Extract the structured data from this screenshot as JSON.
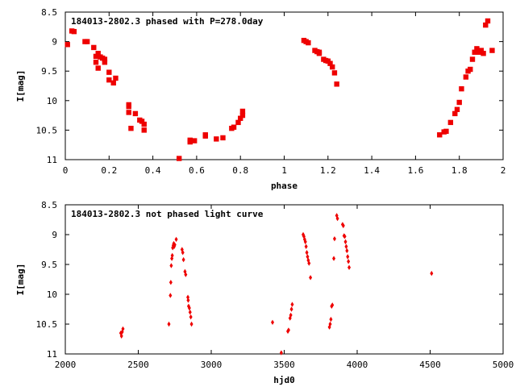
{
  "chart_data": [
    {
      "type": "scatter",
      "title": "184013-2802.3 phased with P=278.0day",
      "xlabel": "phase",
      "ylabel": "I[mag]",
      "xlim": [
        0,
        2
      ],
      "ylim": [
        11,
        8.5
      ],
      "y_inverted": true,
      "grid": false,
      "xticks": [
        0,
        0.2,
        0.4,
        0.6,
        0.8,
        1,
        1.2,
        1.4,
        1.6,
        1.8,
        2
      ],
      "xtick_labels": [
        "0",
        "0.2",
        "0.4",
        "0.6",
        "0.8",
        "1",
        "1.2",
        "1.4",
        "1.6",
        "1.8",
        "2"
      ],
      "yticks": [
        8.5,
        9,
        9.5,
        10,
        10.5,
        11
      ],
      "ytick_labels": [
        "8.5",
        "9",
        "9.5",
        "10",
        "10.5",
        "11"
      ],
      "marker_color": "#ee0000",
      "points": [
        [
          0.01,
          9.05
        ],
        [
          0.03,
          8.82
        ],
        [
          0.04,
          8.83
        ],
        [
          0.09,
          9.0
        ],
        [
          0.1,
          9.0
        ],
        [
          0.13,
          9.1
        ],
        [
          0.14,
          9.25
        ],
        [
          0.14,
          9.35
        ],
        [
          0.15,
          9.2
        ],
        [
          0.15,
          9.45
        ],
        [
          0.16,
          9.26
        ],
        [
          0.17,
          9.28
        ],
        [
          0.18,
          9.3
        ],
        [
          0.18,
          9.35
        ],
        [
          0.2,
          9.52
        ],
        [
          0.2,
          9.65
        ],
        [
          0.22,
          9.7
        ],
        [
          0.23,
          9.62
        ],
        [
          0.29,
          10.07
        ],
        [
          0.29,
          10.1
        ],
        [
          0.29,
          10.2
        ],
        [
          0.3,
          10.47
        ],
        [
          0.32,
          10.22
        ],
        [
          0.34,
          10.33
        ],
        [
          0.35,
          10.35
        ],
        [
          0.36,
          10.4
        ],
        [
          0.36,
          10.5
        ],
        [
          0.52,
          10.98
        ],
        [
          0.57,
          10.67
        ],
        [
          0.57,
          10.7
        ],
        [
          0.59,
          10.68
        ],
        [
          0.64,
          10.58
        ],
        [
          0.64,
          10.6
        ],
        [
          0.69,
          10.65
        ],
        [
          0.72,
          10.63
        ],
        [
          0.76,
          10.47
        ],
        [
          0.77,
          10.45
        ],
        [
          0.79,
          10.37
        ],
        [
          0.8,
          10.3
        ],
        [
          0.81,
          10.25
        ],
        [
          0.81,
          10.18
        ],
        [
          1.09,
          8.98
        ],
        [
          1.1,
          9.0
        ],
        [
          1.11,
          9.02
        ],
        [
          1.14,
          9.15
        ],
        [
          1.15,
          9.17
        ],
        [
          1.16,
          9.18
        ],
        [
          1.16,
          9.2
        ],
        [
          1.18,
          9.3
        ],
        [
          1.19,
          9.32
        ],
        [
          1.2,
          9.33
        ],
        [
          1.21,
          9.37
        ],
        [
          1.22,
          9.43
        ],
        [
          1.23,
          9.53
        ],
        [
          1.24,
          9.72
        ],
        [
          1.71,
          10.58
        ],
        [
          1.73,
          10.53
        ],
        [
          1.74,
          10.52
        ],
        [
          1.76,
          10.37
        ],
        [
          1.78,
          10.22
        ],
        [
          1.79,
          10.15
        ],
        [
          1.8,
          10.03
        ],
        [
          1.81,
          9.8
        ],
        [
          1.83,
          9.6
        ],
        [
          1.84,
          9.5
        ],
        [
          1.85,
          9.47
        ],
        [
          1.86,
          9.3
        ],
        [
          1.87,
          9.18
        ],
        [
          1.88,
          9.12
        ],
        [
          1.89,
          9.18
        ],
        [
          1.9,
          9.15
        ],
        [
          1.91,
          9.2
        ],
        [
          1.92,
          8.72
        ],
        [
          1.93,
          8.65
        ],
        [
          1.95,
          9.15
        ]
      ]
    },
    {
      "type": "scatter",
      "title": "184013-2802.3 not phased light curve",
      "xlabel": "hjd0",
      "ylabel": "I[mag]",
      "xlim": [
        2000,
        5000
      ],
      "ylim": [
        11,
        8.5
      ],
      "y_inverted": true,
      "grid": false,
      "xticks": [
        2000,
        2500,
        3000,
        3500,
        4000,
        4500,
        5000
      ],
      "xtick_labels": [
        "2000",
        "2500",
        "3000",
        "3500",
        "4000",
        "4500",
        "5000"
      ],
      "yticks": [
        8.5,
        9,
        9.5,
        10,
        10.5,
        11
      ],
      "ytick_labels": [
        "8.5",
        "9",
        "9.5",
        "10",
        "10.5",
        "11"
      ],
      "marker_color": "#ee0000",
      "points": [
        [
          2380,
          10.65
        ],
        [
          2385,
          10.7
        ],
        [
          2390,
          10.63
        ],
        [
          2395,
          10.58
        ],
        [
          2710,
          10.5
        ],
        [
          2720,
          10.02
        ],
        [
          2723,
          9.8
        ],
        [
          2726,
          9.52
        ],
        [
          2730,
          9.4
        ],
        [
          2733,
          9.35
        ],
        [
          2736,
          9.22
        ],
        [
          2740,
          9.18
        ],
        [
          2743,
          9.15
        ],
        [
          2746,
          9.2
        ],
        [
          2750,
          9.17
        ],
        [
          2760,
          9.08
        ],
        [
          2800,
          9.25
        ],
        [
          2805,
          9.3
        ],
        [
          2810,
          9.42
        ],
        [
          2820,
          9.62
        ],
        [
          2825,
          9.67
        ],
        [
          2840,
          10.05
        ],
        [
          2842,
          10.1
        ],
        [
          2845,
          10.2
        ],
        [
          2850,
          10.23
        ],
        [
          2855,
          10.3
        ],
        [
          2860,
          10.38
        ],
        [
          2865,
          10.5
        ],
        [
          3420,
          10.47
        ],
        [
          3480,
          10.98
        ],
        [
          3525,
          10.62
        ],
        [
          3530,
          10.6
        ],
        [
          3540,
          10.4
        ],
        [
          3545,
          10.35
        ],
        [
          3550,
          10.25
        ],
        [
          3555,
          10.17
        ],
        [
          3630,
          9.0
        ],
        [
          3635,
          9.03
        ],
        [
          3640,
          9.08
        ],
        [
          3645,
          9.12
        ],
        [
          3650,
          9.2
        ],
        [
          3655,
          9.3
        ],
        [
          3660,
          9.37
        ],
        [
          3665,
          9.43
        ],
        [
          3670,
          9.48
        ],
        [
          3680,
          9.72
        ],
        [
          3810,
          10.55
        ],
        [
          3815,
          10.5
        ],
        [
          3820,
          10.42
        ],
        [
          3825,
          10.2
        ],
        [
          3830,
          10.18
        ],
        [
          3840,
          9.4
        ],
        [
          3845,
          9.07
        ],
        [
          3860,
          8.68
        ],
        [
          3865,
          8.73
        ],
        [
          3900,
          8.83
        ],
        [
          3905,
          8.85
        ],
        [
          3910,
          9.02
        ],
        [
          3915,
          9.03
        ],
        [
          3920,
          9.12
        ],
        [
          3925,
          9.2
        ],
        [
          3930,
          9.27
        ],
        [
          3935,
          9.37
        ],
        [
          3940,
          9.45
        ],
        [
          3945,
          9.55
        ],
        [
          4510,
          9.65
        ]
      ]
    }
  ]
}
